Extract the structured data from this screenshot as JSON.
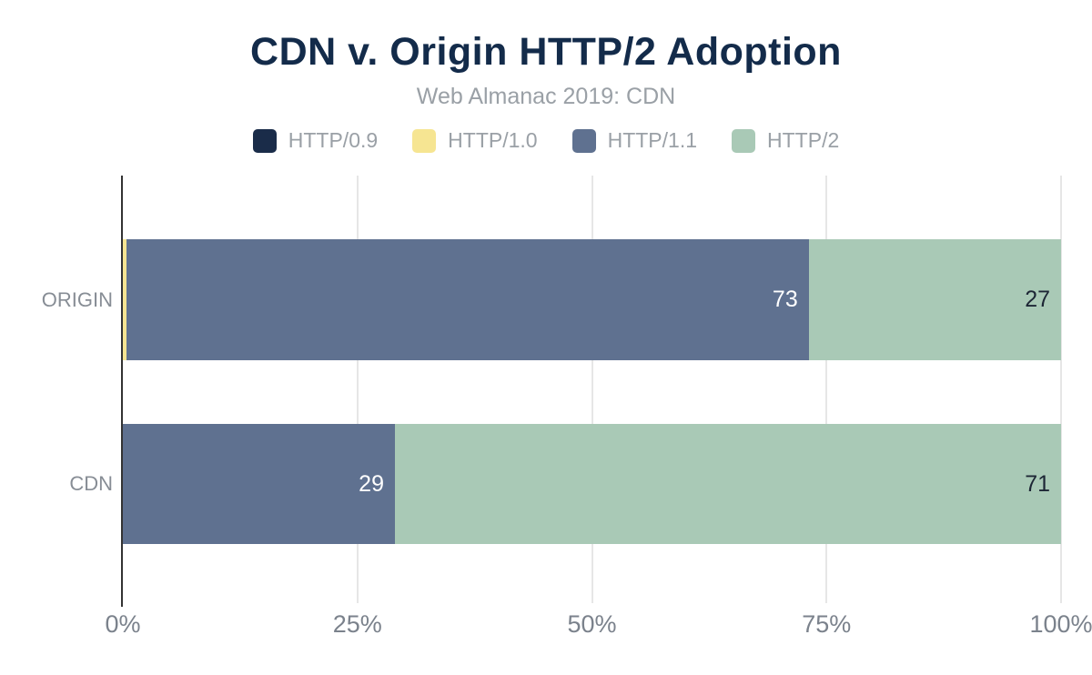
{
  "title": "CDN v. Origin HTTP/2 Adoption",
  "subtitle": "Web Almanac 2019: CDN",
  "colors": {
    "background": "#FFFFFF",
    "title_text": "#132B4A",
    "muted_text": "#9AA0A6",
    "axis_label_text": "#7B828C",
    "category_label_text": "#878D95",
    "gridline": "#CCCCCC",
    "axis_line": "#333333",
    "value_label_light": "#FFFFFF",
    "value_label_dark": "#1D2635"
  },
  "chart_data": {
    "type": "bar",
    "orientation": "horizontal",
    "stacked": true,
    "title": "CDN v. Origin HTTP/2 Adoption",
    "subtitle": "Web Almanac 2019: CDN",
    "categories": [
      "ORIGIN",
      "CDN"
    ],
    "series": [
      {
        "name": "HTTP/0.9",
        "color": "#1A2C49",
        "values": [
          0,
          0
        ]
      },
      {
        "name": "HTTP/1.0",
        "color": "#F6E592",
        "values": [
          0.4,
          0
        ]
      },
      {
        "name": "HTTP/1.1",
        "color": "#5F7190",
        "values": [
          73,
          29
        ]
      },
      {
        "name": "HTTP/2",
        "color": "#A9C9B6",
        "values": [
          27,
          71
        ]
      }
    ],
    "labels": [
      [
        "",
        "",
        "73",
        "27"
      ],
      [
        "",
        "",
        "29",
        "71"
      ]
    ],
    "xlabel": "",
    "ylabel": "",
    "xlim": [
      0,
      100
    ],
    "x_ticks": [
      "0%",
      "25%",
      "50%",
      "75%",
      "100%"
    ],
    "x_tick_positions": [
      0,
      25,
      50,
      75,
      100
    ],
    "grid": true,
    "legend_position": "top",
    "units": "percent"
  }
}
